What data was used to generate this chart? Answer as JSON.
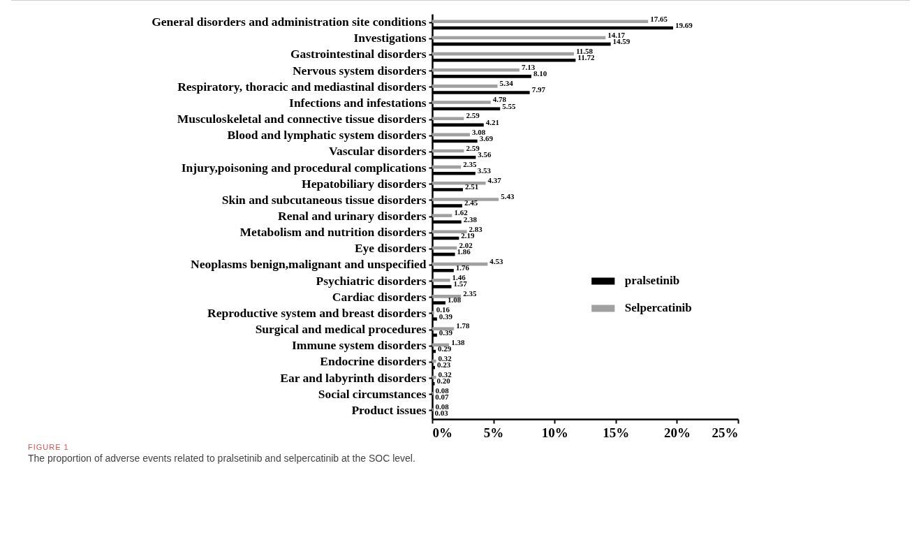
{
  "chart_data": {
    "type": "bar",
    "orientation": "horizontal",
    "categories": [
      "General disorders and administration site conditions",
      "Investigations",
      "Gastrointestinal disorders",
      "Nervous system disorders",
      "Respiratory, thoracic and mediastinal disorders",
      "Infections and infestations",
      "Musculoskeletal and connective tissue disorders",
      "Blood and lymphatic system disorders",
      "Vascular disorders",
      "Injury,poisoning and procedural complications",
      "Hepatobiliary disorders",
      "Skin and subcutaneous tissue disorders",
      "Renal and urinary disorders",
      "Metabolism and nutrition disorders",
      "Eye disorders",
      "Neoplasms benign,malignant and unspecified",
      "Psychiatric disorders",
      "Cardiac disorders",
      "Reproductive system and breast disorders",
      "Surgical and medical procedures",
      "Immune system disorders",
      "Endocrine disorders",
      "Ear and labyrinth disorders",
      "Social circumstances",
      "Product issues"
    ],
    "series": [
      {
        "name": "pralsetinib",
        "color": "#000000",
        "values": [
          19.69,
          14.59,
          11.72,
          8.1,
          7.97,
          5.55,
          4.21,
          3.69,
          3.56,
          3.53,
          2.51,
          2.45,
          2.38,
          2.19,
          1.86,
          1.76,
          1.57,
          1.08,
          0.39,
          0.39,
          0.29,
          0.23,
          0.2,
          0.07,
          0.03
        ],
        "value_labels": [
          "19.69",
          "14.59",
          "11.72",
          "8.10",
          "7.97",
          "5.55",
          "4.21",
          "3.69",
          "3.56",
          "3.53",
          "2.51",
          "2.45",
          "2.38",
          "2.19",
          "1.86",
          "1.76",
          "1.57",
          "1.08",
          "0.39",
          "0.39",
          "0.29",
          "0.23",
          "0.20",
          "0.07",
          "0.03"
        ]
      },
      {
        "name": "Selpercatinib",
        "color": "#a0a0a0",
        "values": [
          17.65,
          14.17,
          11.58,
          7.13,
          5.34,
          4.78,
          2.59,
          3.08,
          2.59,
          2.35,
          4.37,
          5.43,
          1.62,
          2.83,
          2.02,
          4.53,
          1.46,
          2.35,
          0.16,
          1.78,
          1.38,
          0.32,
          0.32,
          0.08,
          0.08
        ],
        "value_labels": [
          "17.65",
          "14.17",
          "11.58",
          "7.13",
          "5.34",
          "4.78",
          "2.59",
          "3.08",
          "2.59",
          "2.35",
          "4.37",
          "5.43",
          "1.62",
          "2.83",
          "2.02",
          "4.53",
          "1.46",
          "2.35",
          "0.16",
          "1.78",
          "1.38",
          "0.32",
          "0.32",
          "0.08",
          "0.08"
        ]
      }
    ],
    "xlim": [
      0,
      25
    ],
    "xticks": [
      {
        "value": 0,
        "label": "0%"
      },
      {
        "value": 5,
        "label": "5%"
      },
      {
        "value": 10,
        "label": "10%"
      },
      {
        "value": 15,
        "label": "15%"
      },
      {
        "value": 20,
        "label": "20%"
      },
      {
        "value": 25,
        "label": "25%"
      }
    ],
    "legend": "right",
    "grid": false,
    "annotations": [
      "FIGURE 1",
      "The proportion of adverse events related to pralsetinib and selpercatinib at the SOC level."
    ]
  }
}
